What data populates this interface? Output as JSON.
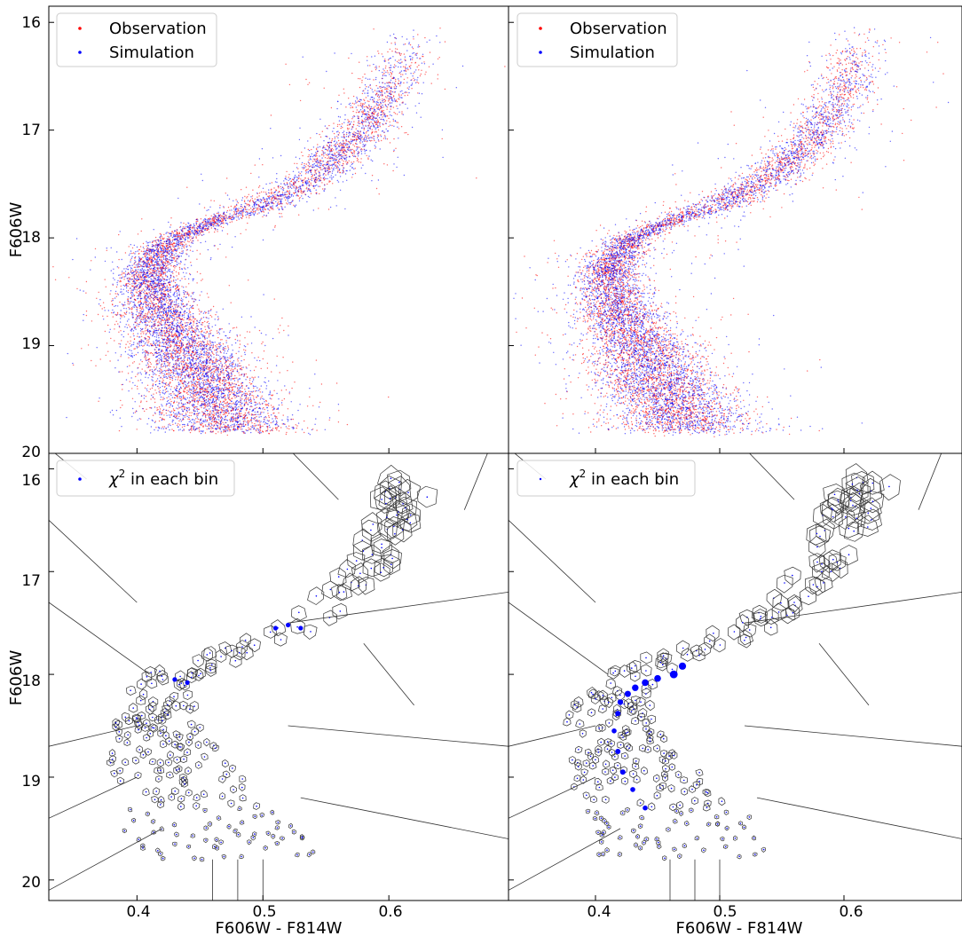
{
  "chart_data": [
    {
      "type": "scatter",
      "panel": "top-left",
      "xlabel": "",
      "ylabel": "F606W",
      "xlim": [
        0.33,
        0.695
      ],
      "ylim": [
        20.0,
        15.85
      ],
      "y_inverted": true,
      "yticks": [
        "16",
        "17",
        "18",
        "19",
        "20"
      ],
      "xticks_labeled": false,
      "legend": {
        "position": "top-left",
        "entries": [
          "Observation",
          "Simulation"
        ]
      },
      "series": [
        {
          "name": "Observation",
          "color": "#ff0000",
          "description_points": "main-sequence/turn-off/subgiant branch stars"
        },
        {
          "name": "Simulation",
          "color": "#0000ff"
        }
      ],
      "ridge": {
        "mag": [
          16.05,
          16.5,
          17.0,
          17.4,
          17.7,
          17.85,
          18.0,
          18.2,
          18.4,
          18.6,
          18.8,
          19.0,
          19.2,
          19.4,
          19.6,
          19.8
        ],
        "color": [
          0.615,
          0.605,
          0.58,
          0.545,
          0.5,
          0.46,
          0.43,
          0.415,
          0.41,
          0.415,
          0.425,
          0.435,
          0.445,
          0.455,
          0.465,
          0.475
        ]
      }
    },
    {
      "type": "scatter",
      "panel": "top-right",
      "xlabel": "",
      "ylabel": "",
      "xlim": [
        0.33,
        0.695
      ],
      "ylim": [
        20.0,
        15.85
      ],
      "y_inverted": true,
      "legend": {
        "position": "top-left",
        "entries": [
          "Observation",
          "Simulation"
        ]
      },
      "series": [
        {
          "name": "Observation",
          "color": "#ff0000"
        },
        {
          "name": "Simulation",
          "color": "#0000ff"
        }
      ]
    },
    {
      "type": "scatter",
      "panel": "bottom-left",
      "xlabel": "F606W - F814W",
      "ylabel": "F606W",
      "xlim": [
        0.33,
        0.695
      ],
      "ylim": [
        20.2,
        15.85
      ],
      "y_inverted": true,
      "xticks": [
        "0.4",
        "0.5",
        "0.6"
      ],
      "yticks": [
        "16",
        "17",
        "18",
        "19",
        "20"
      ],
      "legend": {
        "position": "top-left",
        "entries": [
          "χ² in each bin"
        ]
      },
      "overlay": "voronoi tessellation of bins",
      "highlight_bins": [
        {
          "x": 0.51,
          "y": 17.55,
          "chi2": 3
        },
        {
          "x": 0.52,
          "y": 17.52,
          "chi2": 3
        },
        {
          "x": 0.53,
          "y": 17.55,
          "chi2": 3
        },
        {
          "x": 0.43,
          "y": 18.05,
          "chi2": 3
        },
        {
          "x": 0.44,
          "y": 18.08,
          "chi2": 3
        }
      ]
    },
    {
      "type": "scatter",
      "panel": "bottom-right",
      "xlabel": "F606W - F814W",
      "ylabel": "",
      "xlim": [
        0.33,
        0.695
      ],
      "ylim": [
        20.2,
        15.85
      ],
      "y_inverted": true,
      "xticks": [
        "0.4",
        "0.5",
        "0.6"
      ],
      "legend": {
        "position": "top-left",
        "entries": [
          "χ² in each bin"
        ]
      },
      "overlay": "voronoi tessellation of bins",
      "highlight_bins": [
        {
          "x": 0.47,
          "y": 17.92,
          "chi2": 12
        },
        {
          "x": 0.463,
          "y": 18.0,
          "chi2": 14
        },
        {
          "x": 0.45,
          "y": 18.04,
          "chi2": 10
        },
        {
          "x": 0.44,
          "y": 18.08,
          "chi2": 10
        },
        {
          "x": 0.432,
          "y": 18.13,
          "chi2": 9
        },
        {
          "x": 0.426,
          "y": 18.19,
          "chi2": 8
        },
        {
          "x": 0.42,
          "y": 18.27,
          "chi2": 6
        },
        {
          "x": 0.418,
          "y": 18.38,
          "chi2": 5
        },
        {
          "x": 0.415,
          "y": 18.55,
          "chi2": 4
        },
        {
          "x": 0.418,
          "y": 18.75,
          "chi2": 5
        },
        {
          "x": 0.422,
          "y": 18.95,
          "chi2": 5
        },
        {
          "x": 0.43,
          "y": 19.12,
          "chi2": 4
        },
        {
          "x": 0.44,
          "y": 19.3,
          "chi2": 4
        }
      ]
    }
  ],
  "labels": {
    "ylabel_top": "F606W",
    "ylabel_bottom": "F606W",
    "xlabel_left": "F606W - F814W",
    "xlabel_right": "F606W - F814W",
    "legend_obs": "Observation",
    "legend_sim": "Simulation",
    "legend_chi_prefix": "χ",
    "legend_chi_sup": "2",
    "legend_chi_suffix": " in each bin",
    "y_top_ticks": [
      "16",
      "17",
      "18",
      "19",
      "20"
    ],
    "y_bottom_ticks": [
      "16",
      "17",
      "18",
      "19",
      "20"
    ],
    "x_ticks": [
      "0.4",
      "0.5",
      "0.6"
    ]
  },
  "colors": {
    "observation": "#ff0000",
    "simulation": "#0000ff",
    "voronoi": "#333333",
    "axes": "#000000"
  }
}
